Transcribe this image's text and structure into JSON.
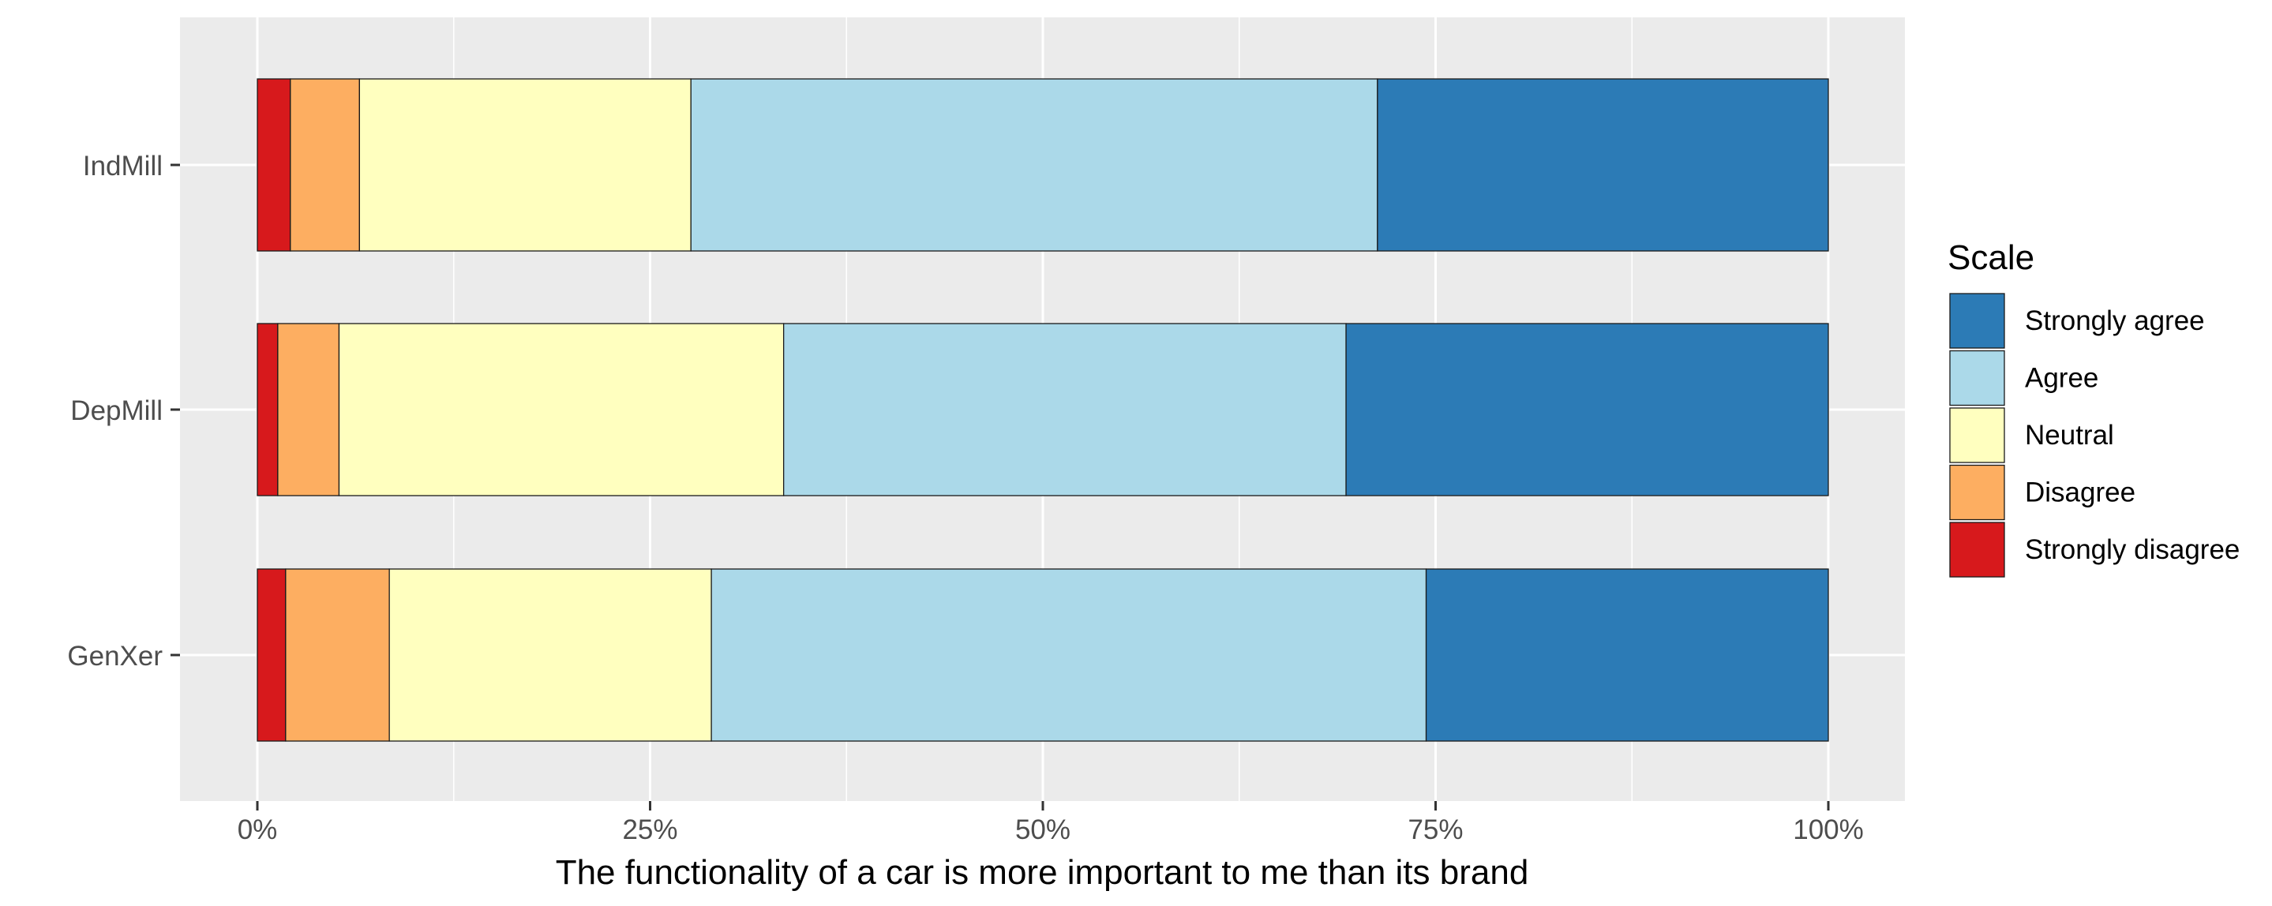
{
  "chart_data": {
    "type": "bar",
    "orientation": "horizontal",
    "stacked": true,
    "categories": [
      "IndMill",
      "DepMill",
      "GenXer"
    ],
    "xlabel": "The functionality of a car is more important to me than its brand",
    "ylabel": "",
    "xlim": [
      0,
      1
    ],
    "xticks": [
      0,
      0.25,
      0.5,
      0.75,
      1.0
    ],
    "xtick_labels": [
      "0%",
      "25%",
      "50%",
      "75%",
      "100%"
    ],
    "grid": true,
    "legend": {
      "title": "Scale",
      "position": "right",
      "entries": [
        "Strongly agree",
        "Agree",
        "Neutral",
        "Disagree",
        "Strongly disagree"
      ]
    },
    "series": [
      {
        "name": "Strongly disagree",
        "color": "#d7191c",
        "values": [
          0.021,
          0.013,
          0.018
        ]
      },
      {
        "name": "Disagree",
        "color": "#fdae61",
        "values": [
          0.044,
          0.039,
          0.066
        ]
      },
      {
        "name": "Neutral",
        "color": "#ffffbf",
        "values": [
          0.211,
          0.283,
          0.205
        ]
      },
      {
        "name": "Agree",
        "color": "#abd9e9",
        "values": [
          0.437,
          0.358,
          0.455
        ]
      },
      {
        "name": "Strongly agree",
        "color": "#2c7bb6",
        "values": [
          0.287,
          0.307,
          0.256
        ]
      }
    ]
  }
}
